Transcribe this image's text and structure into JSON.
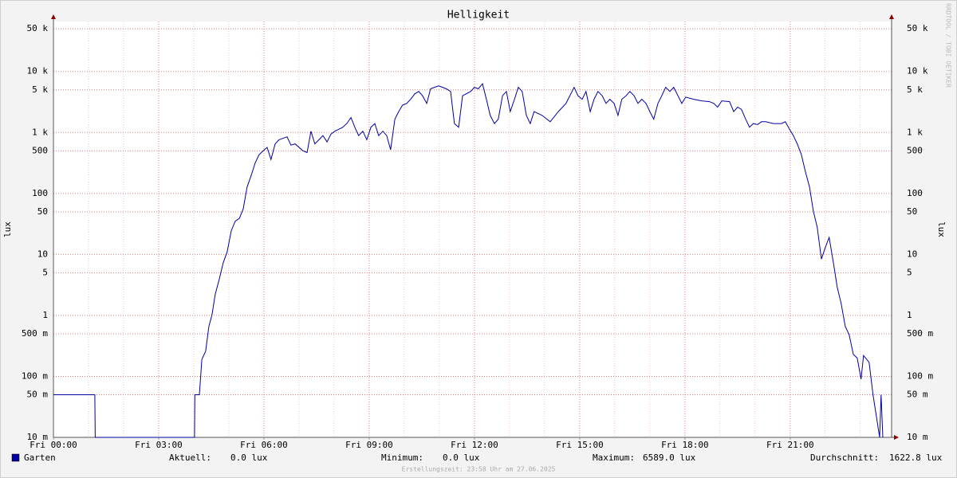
{
  "chart_data": {
    "type": "line",
    "title": "Helligkeit",
    "y_label": "lux",
    "watermark": "RRDTOOL / TOBI OETIKER",
    "log_scale": true,
    "grid": true,
    "xlim": [
      0,
      23.89
    ],
    "xticks": [
      {
        "value": 0,
        "label": "Fri 00:00"
      },
      {
        "value": 3,
        "label": "Fri 03:00"
      },
      {
        "value": 6,
        "label": "Fri 06:00"
      },
      {
        "value": 9,
        "label": "Fri 09:00"
      },
      {
        "value": 12,
        "label": "Fri 12:00"
      },
      {
        "value": 15,
        "label": "Fri 15:00"
      },
      {
        "value": 18,
        "label": "Fri 18:00"
      },
      {
        "value": 21,
        "label": "Fri 21:00"
      }
    ],
    "xminor": [
      1,
      2,
      4,
      5,
      7,
      8,
      10,
      11,
      13,
      14,
      16,
      17,
      19,
      20,
      22,
      23
    ],
    "ylim": [
      0.01,
      66000
    ],
    "yticks": [
      {
        "value": 0.01,
        "label": "10 m"
      },
      {
        "value": 0.05,
        "label": "50 m"
      },
      {
        "value": 0.1,
        "label": "100 m"
      },
      {
        "value": 0.5,
        "label": "500 m"
      },
      1,
      5,
      10,
      50,
      100,
      500,
      {
        "value": 1000,
        "label": "1 k"
      },
      {
        "value": 5000,
        "label": "5 k"
      },
      {
        "value": 10000,
        "label": "10 k"
      },
      {
        "value": 50000,
        "label": "50 k"
      }
    ],
    "x": [
      0,
      1.18,
      1.19,
      4.02,
      4.03,
      4.16,
      4.23,
      4.34,
      4.43,
      4.52,
      4.61,
      4.73,
      4.84,
      4.95,
      5.07,
      5.18,
      5.3,
      5.41,
      5.52,
      5.64,
      5.75,
      5.86,
      5.98,
      6.09,
      6.2,
      6.32,
      6.43,
      6.66,
      6.77,
      6.89,
      7.11,
      7.23,
      7.34,
      7.45,
      7.57,
      7.68,
      7.8,
      7.91,
      8.02,
      8.25,
      8.36,
      8.48,
      8.59,
      8.7,
      8.82,
      8.93,
      9.05,
      9.16,
      9.27,
      9.39,
      9.5,
      9.61,
      9.73,
      9.84,
      9.95,
      10.07,
      10.18,
      10.3,
      10.41,
      10.52,
      10.64,
      10.75,
      10.86,
      10.98,
      11.09,
      11.2,
      11.32,
      11.43,
      11.55,
      11.66,
      11.89,
      12.0,
      12.11,
      12.23,
      12.34,
      12.45,
      12.57,
      12.68,
      12.8,
      12.91,
      13.02,
      13.14,
      13.25,
      13.36,
      13.48,
      13.59,
      13.7,
      13.93,
      14.16,
      14.39,
      14.61,
      14.84,
      14.95,
      15.07,
      15.18,
      15.3,
      15.41,
      15.52,
      15.64,
      15.75,
      15.86,
      15.98,
      16.09,
      16.2,
      16.32,
      16.43,
      16.55,
      16.66,
      16.77,
      16.89,
      17.0,
      17.11,
      17.23,
      17.34,
      17.45,
      17.57,
      17.68,
      17.8,
      17.91,
      18.02,
      18.25,
      18.48,
      18.7,
      18.82,
      18.93,
      19.05,
      19.27,
      19.39,
      19.5,
      19.61,
      19.73,
      19.84,
      19.95,
      20.07,
      20.18,
      20.3,
      20.52,
      20.75,
      20.86,
      20.98,
      21.09,
      21.2,
      21.32,
      21.43,
      21.55,
      21.66,
      21.77,
      21.89,
      22.0,
      22.11,
      22.23,
      22.34,
      22.45,
      22.57,
      22.68,
      22.8,
      22.91,
      23.02,
      23.09,
      23.25,
      23.36,
      23.55,
      23.59,
      23.64
    ],
    "series": [
      {
        "name": "Garten",
        "color": "#0000a0",
        "values": [
          0.05,
          0.05,
          0.01,
          0.01,
          0.05,
          0.05,
          0.19,
          0.26,
          0.66,
          1.02,
          2.2,
          4,
          7.3,
          11,
          24.5,
          35,
          39,
          56,
          127,
          200,
          318,
          430,
          500,
          570,
          360,
          650,
          760,
          850,
          620,
          650,
          500,
          470,
          1050,
          650,
          760,
          890,
          700,
          940,
          1050,
          1220,
          1400,
          1760,
          1220,
          890,
          1050,
          760,
          1220,
          1400,
          890,
          1050,
          890,
          520,
          1650,
          2200,
          2800,
          3000,
          3500,
          4300,
          4700,
          4000,
          3000,
          5200,
          5500,
          5800,
          5500,
          5200,
          4700,
          1400,
          1220,
          4000,
          4700,
          5500,
          5200,
          6300,
          3500,
          1900,
          1400,
          1650,
          4000,
          4700,
          2200,
          3500,
          5500,
          4700,
          1900,
          1400,
          2200,
          1900,
          1500,
          2200,
          3000,
          5500,
          4000,
          3500,
          4700,
          2200,
          3500,
          4700,
          4000,
          3000,
          3500,
          3000,
          1900,
          3500,
          4000,
          4700,
          4000,
          3000,
          3500,
          3000,
          2200,
          1650,
          3000,
          4000,
          5500,
          4700,
          5500,
          4000,
          3000,
          3800,
          3500,
          3300,
          3200,
          3000,
          2600,
          3300,
          3200,
          2200,
          2600,
          2400,
          1650,
          1220,
          1400,
          1350,
          1500,
          1500,
          1400,
          1400,
          1500,
          1130,
          890,
          650,
          430,
          230,
          127,
          51,
          28,
          8.4,
          13,
          19,
          7.3,
          2.9,
          1.6,
          0.66,
          0.48,
          0.23,
          0.2,
          0.09,
          0.22,
          0.17,
          0.05,
          0.01,
          0.05,
          0.01
        ]
      }
    ],
    "stats": [
      {
        "label": "Aktuell:",
        "value": "0.0 lux"
      },
      {
        "label": "Minimum:",
        "value": "0.0 lux"
      },
      {
        "label": "Maximum:",
        "value": "6589.0 lux"
      },
      {
        "label": "Durchschnitt:",
        "value": "1622.8 lux"
      }
    ],
    "footer": "Erstellungszeit: 23:58 Uhr am 27.06.2025"
  }
}
